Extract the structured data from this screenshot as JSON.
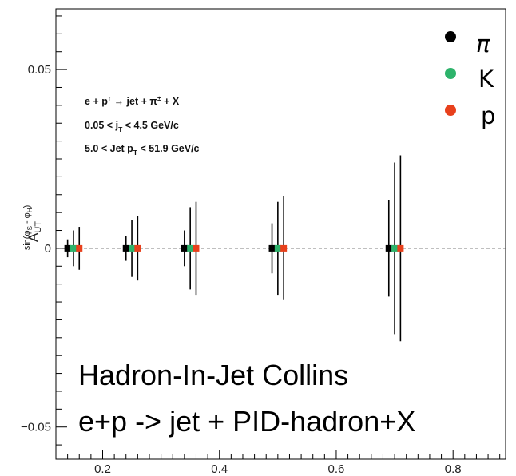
{
  "chart_data": {
    "type": "scatter",
    "xlim": [
      0.12,
      0.89
    ],
    "ylim": [
      -0.059,
      0.067
    ],
    "x_ticks": [
      0.2,
      0.4,
      0.6,
      0.8
    ],
    "x_tick_labels": [
      "0.2",
      "0.4",
      "0.6",
      "0.8"
    ],
    "y_ticks": [
      -0.05,
      0,
      0.05
    ],
    "y_tick_labels": [
      "−0.05",
      "0",
      "0.05"
    ],
    "ylabel_main": "A",
    "ylabel_sub": "UT",
    "ylabel_sup": "sin(φ",
    "ylabel_sup_s": "S",
    "ylabel_sup_mid": " - φ",
    "ylabel_sup_h": "H",
    "ylabel_sup_end": ")",
    "zero_line": true,
    "series": [
      {
        "name": "π",
        "color": "#000000",
        "x": [
          0.14,
          0.24,
          0.34,
          0.49,
          0.69
        ],
        "y": [
          0,
          0,
          0,
          0,
          0
        ],
        "err": [
          0.0025,
          0.0035,
          0.005,
          0.007,
          0.0135
        ]
      },
      {
        "name": "K",
        "color": "#2db36b",
        "x": [
          0.15,
          0.25,
          0.35,
          0.5,
          0.7
        ],
        "y": [
          0,
          0,
          0,
          0,
          0
        ],
        "err": [
          0.005,
          0.008,
          0.0115,
          0.013,
          0.024
        ]
      },
      {
        "name": "p",
        "color": "#e8401c",
        "x": [
          0.16,
          0.26,
          0.36,
          0.51,
          0.71
        ],
        "y": [
          0,
          0,
          0,
          0,
          0
        ],
        "err": [
          0.006,
          0.009,
          0.013,
          0.0145,
          0.026
        ]
      }
    ],
    "annotations": {
      "line1_a": "e + p",
      "line1_arrow": "↑",
      "line1_b": " → jet + π",
      "line1_pm": "±",
      "line1_c": " + X",
      "line2_a": "0.05 < j",
      "line2_sub": "T",
      "line2_b": " < 4.5 GeV/c",
      "line3_a": "5.0 < Jet p",
      "line3_sub": "T",
      "line3_b": " < 51.9 GeV/c"
    },
    "legend_placement": "top-right",
    "title_line1": "Hadron-In-Jet Collins",
    "title_line2": "e+p -> jet + PID-hadron+X"
  }
}
